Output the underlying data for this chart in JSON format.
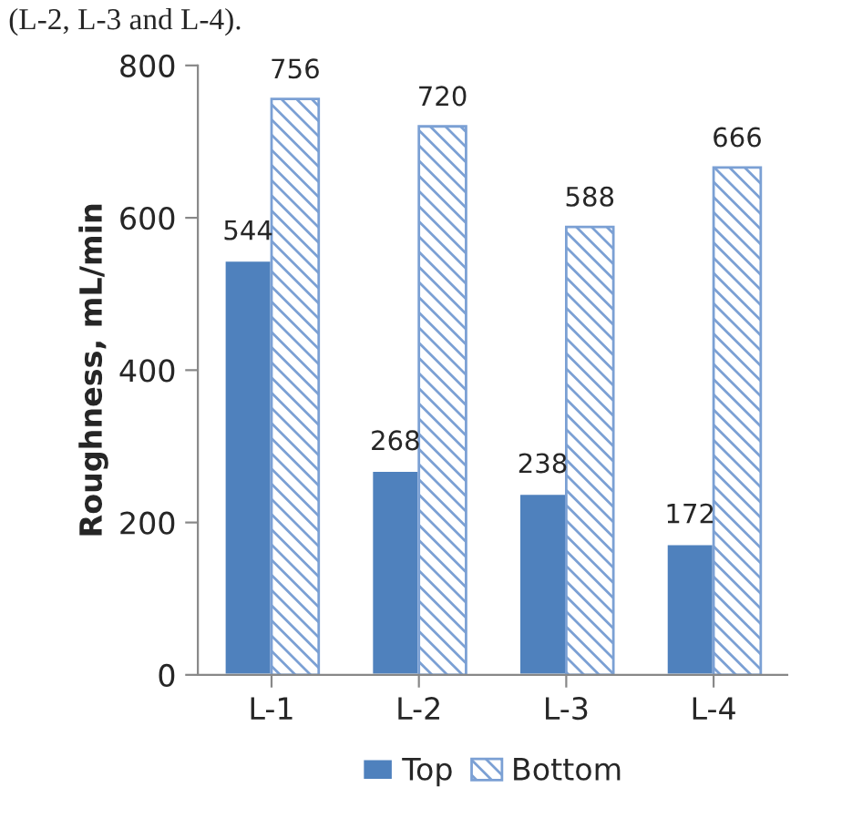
{
  "chart_data": {
    "type": "bar",
    "categories": [
      "L-1",
      "L-2",
      "L-3",
      "L-4"
    ],
    "series": [
      {
        "name": "Top",
        "color": "#4f81bd",
        "values": [
          544,
          268,
          238,
          172
        ]
      },
      {
        "name": "Bottom",
        "color": "#7ba0d4",
        "values": [
          756,
          720,
          588,
          666
        ]
      }
    ],
    "ylabel": "Roughness, mL/min",
    "ylim": [
      0,
      800
    ],
    "yticks": [
      0,
      200,
      400,
      600,
      800
    ],
    "data_labels": true,
    "grid": false,
    "legend": "bottom",
    "annotations": [
      "(L-2, L-3 and L-4)."
    ]
  }
}
